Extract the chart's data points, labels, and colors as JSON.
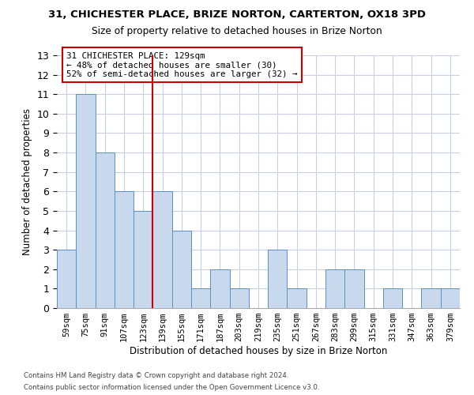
{
  "title1": "31, CHICHESTER PLACE, BRIZE NORTON, CARTERTON, OX18 3PD",
  "title2": "Size of property relative to detached houses in Brize Norton",
  "xlabel": "Distribution of detached houses by size in Brize Norton",
  "ylabel": "Number of detached properties",
  "categories": [
    "59sqm",
    "75sqm",
    "91sqm",
    "107sqm",
    "123sqm",
    "139sqm",
    "155sqm",
    "171sqm",
    "187sqm",
    "203sqm",
    "219sqm",
    "235sqm",
    "251sqm",
    "267sqm",
    "283sqm",
    "299sqm",
    "315sqm",
    "331sqm",
    "347sqm",
    "363sqm",
    "379sqm"
  ],
  "values": [
    3,
    11,
    8,
    6,
    5,
    6,
    4,
    1,
    2,
    1,
    0,
    3,
    1,
    0,
    2,
    2,
    0,
    1,
    0,
    1,
    1
  ],
  "bar_color": "#c9d9ed",
  "bar_edge_color": "#5a8fc3",
  "grid_color": "#c8d0e0",
  "vline_x": 4.5,
  "vline_color": "#cc0000",
  "annotation_text": "31 CHICHESTER PLACE: 129sqm\n← 48% of detached houses are smaller (30)\n52% of semi-detached houses are larger (32) →",
  "annotation_box_edge": "#cc0000",
  "footer1": "Contains HM Land Registry data © Crown copyright and database right 2024.",
  "footer2": "Contains public sector information licensed under the Open Government Licence v3.0.",
  "ylim": [
    0,
    13
  ],
  "yticks": [
    0,
    1,
    2,
    3,
    4,
    5,
    6,
    7,
    8,
    9,
    10,
    11,
    12,
    13
  ]
}
